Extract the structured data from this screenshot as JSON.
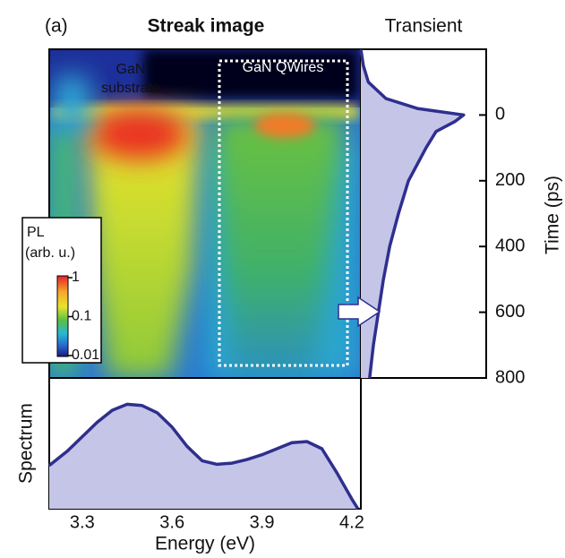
{
  "chart_data": [
    {
      "type": "image",
      "label": "(a)",
      "title": "Streak image",
      "annotations": [
        "GaN",
        "substrate",
        "GaN QWires"
      ],
      "colorbar": {
        "title": "PL",
        "subtitle": "(arb. u.)",
        "ticks": [
          1,
          0.1,
          0.01
        ],
        "clim": [
          0.01,
          1
        ],
        "log": true
      }
    },
    {
      "type": "area",
      "orientation": "vertical",
      "title": "Transient",
      "xlabel": "Time (ps)",
      "x": [
        -200,
        -150,
        -100,
        -50,
        -20,
        0,
        20,
        50,
        100,
        200,
        300,
        400,
        500,
        600,
        700,
        800
      ],
      "values": [
        0,
        0.02,
        0.06,
        0.2,
        0.45,
        0.82,
        0.75,
        0.6,
        0.52,
        0.38,
        0.3,
        0.23,
        0.18,
        0.14,
        0.1,
        0.07
      ],
      "xlim": [
        -200,
        800
      ],
      "xticks": [
        0,
        200,
        400,
        600,
        800
      ],
      "ylim": [
        0,
        1
      ],
      "color": "#2e2f8e",
      "fill": "#c5c5e8"
    },
    {
      "type": "area",
      "orientation": "horizontal",
      "ylabel": "Spectrum",
      "xlabel": "Energy (eV)",
      "x": [
        3.19,
        3.25,
        3.3,
        3.35,
        3.4,
        3.45,
        3.5,
        3.55,
        3.6,
        3.65,
        3.7,
        3.75,
        3.8,
        3.85,
        3.9,
        3.95,
        4.0,
        4.05,
        4.1,
        4.15,
        4.2,
        4.22
      ],
      "values": [
        0.36,
        0.48,
        0.6,
        0.72,
        0.82,
        0.87,
        0.86,
        0.8,
        0.68,
        0.52,
        0.4,
        0.37,
        0.38,
        0.41,
        0.45,
        0.5,
        0.55,
        0.56,
        0.5,
        0.3,
        0.08,
        0
      ],
      "xlim": [
        3.19,
        4.23
      ],
      "xticks": [
        3.3,
        3.6,
        3.9,
        4.2
      ],
      "ylim": [
        0,
        1
      ],
      "color": "#2e2f8e",
      "fill": "#c5c5e8"
    }
  ]
}
